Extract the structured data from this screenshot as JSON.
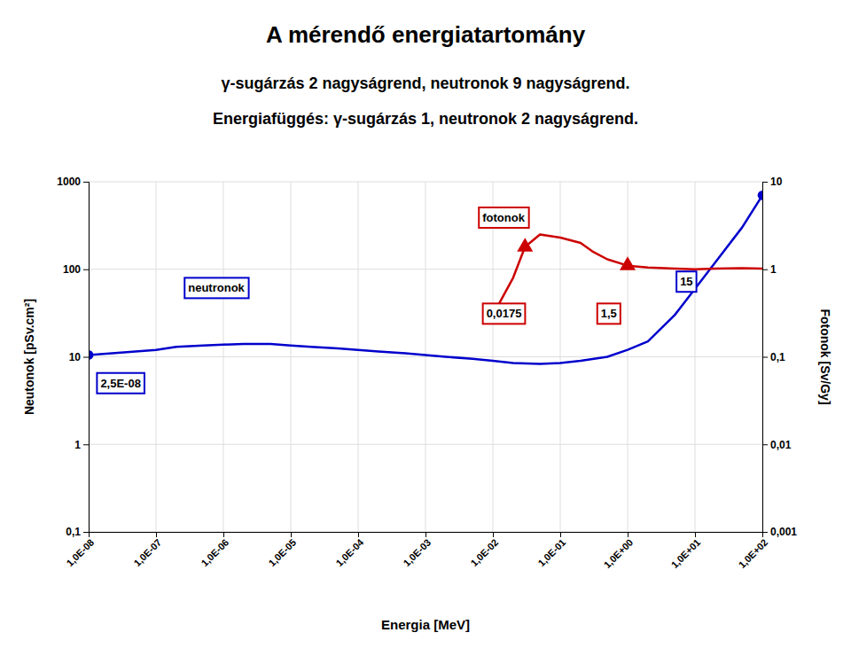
{
  "chart_data": {
    "type": "line",
    "title": "A mérendő energiatartomány",
    "subtitle": [
      "γ-sugárzás 2 nagyságrend, neutronok 9 nagyságrend.",
      "Energiafüggés: γ-sugárzás 1, neutronok 2 nagyságrend."
    ],
    "x_label": "Energia [MeV]",
    "y_label": "Neutonok [pSv.cm²]",
    "y2_label": "Fotonok [Sv/Gy]",
    "log": true,
    "grid": true,
    "xlim": [
      1e-08,
      100.0
    ],
    "xticks": [
      {
        "value": 1e-08,
        "label": "1,0E-08"
      },
      {
        "value": 1e-07,
        "label": "1,0E-07"
      },
      {
        "value": 1e-06,
        "label": "1,0E-06"
      },
      {
        "value": 1e-05,
        "label": "1,0E-05"
      },
      {
        "value": 0.0001,
        "label": "1,0E-04"
      },
      {
        "value": 0.001,
        "label": "1,0E-03"
      },
      {
        "value": 0.01,
        "label": "1,0E-02"
      },
      {
        "value": 0.1,
        "label": "1,0E-01"
      },
      {
        "value": 1.0,
        "label": "1,0E+00"
      },
      {
        "value": 10.0,
        "label": "1,0E+01"
      },
      {
        "value": 100.0,
        "label": "1,0E+02"
      }
    ],
    "ylim": [
      0.1,
      1000
    ],
    "yticks": [
      {
        "value": 0.1,
        "label": "0,1"
      },
      1,
      10,
      100,
      1000
    ],
    "y2lim": [
      0.001,
      10
    ],
    "y2ticks": [
      {
        "value": 0.001,
        "label": "0,001"
      },
      {
        "value": 0.01,
        "label": "0,01"
      },
      {
        "value": 0.1,
        "label": "0,1"
      },
      1,
      10
    ],
    "series": [
      {
        "type": "line",
        "color": "#0000cc",
        "x": [
          1e-08,
          1e-07,
          2e-07,
          5e-07,
          1e-06,
          2e-06,
          5e-06,
          1e-05,
          2e-05,
          5e-05,
          0.0001,
          0.0002,
          0.0005,
          0.001,
          0.002,
          0.005,
          0.01,
          0.02,
          0.05,
          0.1,
          0.2,
          0.5,
          1.0,
          2.0,
          5.0,
          10.0,
          20.0,
          50.0,
          100.0
        ],
        "values": [
          10.5,
          12,
          13,
          13.5,
          13.8,
          14,
          14,
          13.5,
          13,
          12.5,
          12,
          11.5,
          11,
          10.5,
          10,
          9.5,
          9,
          8.5,
          8.3,
          8.5,
          9,
          10,
          12,
          15,
          30,
          60,
          120,
          300,
          700
        ]
      },
      {
        "type": "scatter",
        "color": "#0000cc",
        "marker": "circle",
        "x": [
          1e-08,
          100.0
        ],
        "values": [
          10.5,
          700
        ]
      },
      {
        "type": "line",
        "color": "#cc0000",
        "x": [
          0.01,
          0.02,
          0.03,
          0.05,
          0.1,
          0.2,
          0.3,
          0.5,
          1.0,
          2.0,
          5.0,
          10.0,
          20.0,
          50.0,
          100.0
        ],
        "values": [
          30,
          80,
          180,
          250,
          230,
          200,
          160,
          130,
          110,
          105,
          102,
          100,
          102,
          103,
          102
        ]
      },
      {
        "type": "scatter",
        "color": "#cc0000",
        "marker": "triangle",
        "x": [
          0.03,
          1.0
        ],
        "values": [
          180,
          110
        ]
      }
    ],
    "annotations": [
      {
        "text": "neutronok",
        "x": 3e-07,
        "y": 55,
        "color": "#0000cc"
      },
      {
        "text": "2,5E-08",
        "x": 1.5e-08,
        "y": 4.5,
        "color": "#0000cc"
      },
      {
        "text": "fotonok",
        "x": 0.007,
        "y": 350,
        "color": "#cc0000"
      },
      {
        "text": "0,0175",
        "x": 0.008,
        "y": 28,
        "color": "#cc0000"
      },
      {
        "text": "1,5",
        "x": 0.4,
        "y": 28,
        "color": "#cc0000"
      },
      {
        "text": "15",
        "x": 6.0,
        "y": 65,
        "color": "#0000cc"
      }
    ]
  }
}
